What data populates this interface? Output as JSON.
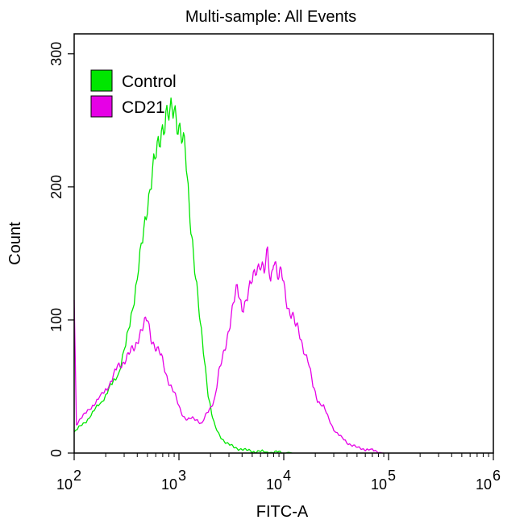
{
  "chart_data": {
    "type": "line",
    "title": "Multi-sample: All Events",
    "xlabel": "FITC-A",
    "ylabel": "Count",
    "xscale": "log",
    "xlim": [
      100,
      1000000
    ],
    "ylim": [
      0,
      315
    ],
    "x_ticks": [
      {
        "value": 100,
        "base": "10",
        "exp": "2"
      },
      {
        "value": 1000,
        "base": "10",
        "exp": "3"
      },
      {
        "value": 10000,
        "base": "10",
        "exp": "4"
      },
      {
        "value": 100000,
        "base": "10",
        "exp": "5"
      },
      {
        "value": 1000000,
        "base": "10",
        "exp": "6"
      }
    ],
    "y_ticks": [
      {
        "value": 0,
        "label": "0"
      },
      {
        "value": 100,
        "label": "100"
      },
      {
        "value": 200,
        "label": "200"
      },
      {
        "value": 300,
        "label": "300"
      }
    ],
    "legend_position": "top-left",
    "series": [
      {
        "name": "Control",
        "color": "#00e600",
        "x": [
          100,
          115,
          130,
          150,
          170,
          200,
          230,
          270,
          310,
          350,
          400,
          450,
          500,
          560,
          620,
          680,
          750,
          820,
          900,
          980,
          1060,
          1150,
          1250,
          1350,
          1480,
          1600,
          1750,
          1900,
          2050,
          2200,
          2400,
          2650,
          2900,
          3200,
          3500,
          3900,
          4300,
          4800,
          5300,
          6000,
          7000,
          8000,
          9000,
          10000,
          12000
        ],
        "y": [
          16,
          20,
          24,
          30,
          36,
          43,
          52,
          62,
          80,
          105,
          130,
          160,
          190,
          210,
          225,
          245,
          255,
          250,
          258,
          252,
          240,
          222,
          185,
          160,
          125,
          95,
          70,
          45,
          30,
          20,
          14,
          10,
          7,
          5,
          4,
          3,
          2,
          2,
          1,
          1,
          1,
          0,
          1,
          0,
          0
        ]
      },
      {
        "name": "CD21",
        "color": "#e600e6",
        "x": [
          100,
          105,
          115,
          130,
          150,
          170,
          200,
          230,
          260,
          290,
          320,
          350,
          380,
          420,
          460,
          500,
          540,
          580,
          620,
          680,
          750,
          820,
          900,
          1000,
          1100,
          1200,
          1350,
          1500,
          1650,
          1800,
          2000,
          2200,
          2400,
          2600,
          2800,
          3000,
          3300,
          3600,
          4000,
          4500,
          5000,
          5500,
          6000,
          6500,
          7000,
          7500,
          8000,
          8500,
          9000,
          9500,
          10000,
          11000,
          12000,
          13000,
          14000,
          15000,
          17000,
          19000,
          21000,
          24000,
          27000,
          30000,
          35000,
          40000,
          45000,
          50000,
          60000,
          70000,
          80000,
          90000
        ],
        "y": [
          115,
          22,
          26,
          30,
          36,
          40,
          48,
          55,
          65,
          68,
          72,
          76,
          80,
          90,
          95,
          100,
          88,
          82,
          78,
          72,
          60,
          52,
          45,
          35,
          28,
          25,
          26,
          25,
          22,
          28,
          34,
          42,
          60,
          70,
          82,
          95,
          112,
          122,
          110,
          118,
          128,
          140,
          145,
          135,
          148,
          128,
          150,
          140,
          130,
          135,
          125,
          110,
          105,
          95,
          90,
          82,
          70,
          50,
          40,
          35,
          25,
          18,
          12,
          8,
          6,
          4,
          3,
          2,
          1,
          0
        ]
      }
    ]
  }
}
